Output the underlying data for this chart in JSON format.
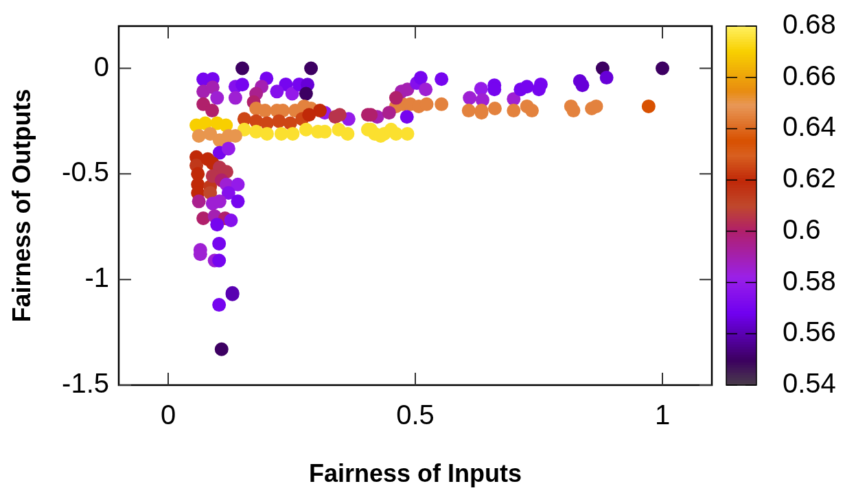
{
  "chart_data": {
    "type": "scatter",
    "xlabel": "Fairness of Inputs",
    "ylabel": "Fairness of Outputs",
    "clim": [
      0.54,
      0.68
    ],
    "cticks": [
      0.54,
      0.56,
      0.58,
      0.6,
      0.62,
      0.64,
      0.66,
      0.68
    ],
    "xlim": [
      -0.1,
      1.1
    ],
    "ylim": [
      -1.5,
      0.2
    ],
    "xticks": [
      0,
      0.5,
      1
    ],
    "yticks": [
      -1.5,
      -1,
      -0.5,
      0
    ],
    "grid": false,
    "marker": "circle",
    "x": [
      0.071,
      0.09,
      0.071,
      0.09,
      0.099,
      0.071,
      0.089,
      0.136,
      0.15,
      0.136,
      0.199,
      0.189,
      0.178,
      0.173,
      0.238,
      0.22,
      0.251,
      0.265,
      0.282,
      0.15,
      0.289,
      0.279,
      0.317,
      0.365,
      0.347,
      0.338,
      0.404,
      0.423,
      0.41,
      0.178,
      0.196,
      0.22,
      0.232,
      0.257,
      0.275,
      0.289,
      0.307,
      0.154,
      0.178,
      0.2,
      0.224,
      0.247,
      0.271,
      0.285,
      0.154,
      0.178,
      0.2,
      0.229,
      0.252,
      0.279,
      0.303,
      0.317,
      0.345,
      0.363,
      0.404,
      0.418,
      0.437,
      0.41,
      0.43,
      0.057,
      0.075,
      0.099,
      0.117,
      0.062,
      0.085,
      0.104,
      0.122,
      0.136,
      0.104,
      0.122,
      0.057,
      0.057,
      0.08,
      0.09,
      0.104,
      0.118,
      0.06,
      0.06,
      0.085,
      0.09,
      0.06,
      0.085,
      0.108,
      0.118,
      0.141,
      0.122,
      0.141,
      0.062,
      0.09,
      0.104,
      0.071,
      0.094,
      0.115,
      0.127,
      0.099,
      0.103,
      0.065,
      0.065,
      0.094,
      0.103,
      0.13,
      0.13,
      0.103,
      0.108,
      0.461,
      0.475,
      0.49,
      0.507,
      0.523,
      0.472,
      0.484,
      0.503,
      0.461,
      0.447,
      0.483,
      0.451,
      0.461,
      0.484,
      0.553,
      0.511,
      0.521,
      0.633,
      0.66,
      0.66,
      0.61,
      0.636,
      0.699,
      0.713,
      0.726,
      0.754,
      0.75,
      0.553,
      0.608,
      0.634,
      0.634,
      0.661,
      0.699,
      0.726,
      0.736,
      0.815,
      0.82,
      0.857,
      0.866,
      0.972,
      0.879,
      1.0,
      0.887,
      0.833,
      0.838
    ],
    "values": [
      -0.052,
      -0.05,
      -0.11,
      -0.09,
      -0.14,
      -0.17,
      -0.2,
      -0.087,
      -0.077,
      -0.14,
      -0.048,
      -0.087,
      -0.12,
      -0.16,
      -0.076,
      -0.11,
      -0.12,
      -0.076,
      -0.077,
      0,
      0,
      -0.12,
      -0.21,
      -0.24,
      -0.22,
      -0.23,
      -0.22,
      -0.23,
      -0.22,
      -0.19,
      -0.2,
      -0.2,
      -0.2,
      -0.2,
      -0.18,
      -0.19,
      -0.2,
      -0.24,
      -0.25,
      -0.26,
      -0.25,
      -0.26,
      -0.24,
      -0.22,
      -0.29,
      -0.3,
      -0.31,
      -0.31,
      -0.31,
      -0.29,
      -0.3,
      -0.3,
      -0.29,
      -0.31,
      -0.29,
      -0.31,
      -0.31,
      -0.29,
      -0.32,
      -0.27,
      -0.26,
      -0.26,
      -0.27,
      -0.32,
      -0.31,
      -0.34,
      -0.32,
      -0.32,
      -0.4,
      -0.38,
      -0.42,
      -0.46,
      -0.43,
      -0.45,
      -0.47,
      -0.49,
      -0.5,
      -0.55,
      -0.56,
      -0.51,
      -0.59,
      -0.59,
      -0.53,
      -0.55,
      -0.55,
      -0.59,
      -0.63,
      -0.63,
      -0.64,
      -0.63,
      -0.71,
      -0.7,
      -0.71,
      -0.72,
      -0.74,
      -0.83,
      -0.86,
      -0.88,
      -0.91,
      -0.91,
      -1.064,
      -1.07,
      -1.12,
      -1.33,
      -0.18,
      -0.17,
      -0.17,
      -0.18,
      -0.17,
      -0.11,
      -0.1,
      -0.07,
      -0.14,
      -0.21,
      -0.23,
      -0.29,
      -0.31,
      -0.31,
      -0.051,
      -0.045,
      -0.1,
      -0.097,
      -0.08,
      -0.1,
      -0.14,
      -0.15,
      -0.145,
      -0.1,
      -0.087,
      -0.076,
      -0.1,
      -0.17,
      -0.2,
      -0.2,
      -0.21,
      -0.19,
      -0.2,
      -0.18,
      -0.2,
      -0.18,
      -0.2,
      -0.19,
      -0.18,
      -0.18,
      0,
      0,
      -0.044,
      -0.06,
      -0.08
    ],
    "cvalues": [
      0.57,
      0.57,
      0.59,
      0.59,
      0.585,
      0.6,
      0.6,
      0.575,
      0.57,
      0.585,
      0.57,
      0.59,
      0.595,
      0.6,
      0.57,
      0.575,
      0.58,
      0.57,
      0.565,
      0.55,
      0.55,
      0.55,
      0.58,
      0.58,
      0.605,
      0.605,
      0.6,
      0.59,
      0.6,
      0.645,
      0.645,
      0.645,
      0.645,
      0.645,
      0.645,
      0.645,
      0.62,
      0.625,
      0.625,
      0.625,
      0.625,
      0.625,
      0.625,
      0.62,
      0.675,
      0.675,
      0.675,
      0.675,
      0.675,
      0.675,
      0.675,
      0.675,
      0.675,
      0.675,
      0.675,
      0.675,
      0.675,
      0.675,
      0.675,
      0.67,
      0.67,
      0.67,
      0.67,
      0.65,
      0.65,
      0.65,
      0.65,
      0.65,
      0.57,
      0.58,
      0.62,
      0.615,
      0.62,
      0.62,
      0.605,
      0.605,
      0.62,
      0.62,
      0.615,
      0.605,
      0.62,
      0.61,
      0.6,
      0.585,
      0.58,
      0.575,
      0.57,
      0.595,
      0.585,
      0.585,
      0.6,
      0.59,
      0.6,
      0.575,
      0.57,
      0.57,
      0.585,
      0.585,
      0.585,
      0.57,
      0.56,
      0.56,
      0.57,
      0.55,
      0.645,
      0.645,
      0.645,
      0.645,
      0.645,
      0.59,
      0.59,
      0.575,
      0.6,
      0.595,
      0.57,
      0.675,
      0.675,
      0.675,
      0.57,
      0.57,
      0.585,
      0.58,
      0.57,
      0.57,
      0.585,
      0.585,
      0.585,
      0.57,
      0.57,
      0.57,
      0.57,
      0.645,
      0.645,
      0.645,
      0.645,
      0.645,
      0.645,
      0.645,
      0.645,
      0.645,
      0.645,
      0.645,
      0.645,
      0.635,
      0.55,
      0.55,
      0.565,
      0.565,
      0.565
    ]
  }
}
